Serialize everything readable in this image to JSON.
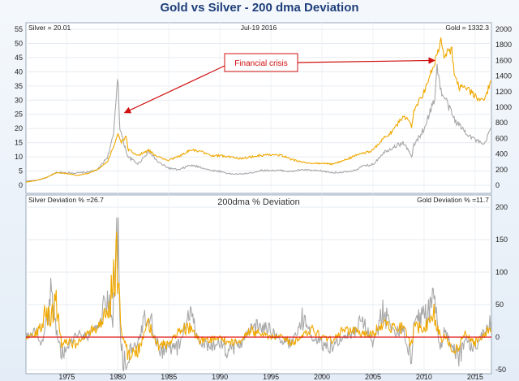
{
  "chart_data": [
    {
      "type": "line",
      "title": "Gold vs Silver - 200 dma Deviation",
      "top_left_label": "Silver = 20.01",
      "top_center_label": "Jul-19  2016",
      "top_right_label": "Gold = 1332.3",
      "left_axis": {
        "range": [
          0,
          55
        ],
        "ticks": [
          "0",
          "5",
          "10",
          "15",
          "20",
          "25",
          "30",
          "35",
          "40",
          "45",
          "50",
          "55"
        ]
      },
      "right_axis": {
        "range": [
          0,
          2000
        ],
        "ticks": [
          "0",
          "200",
          "400",
          "600",
          "800",
          "1000",
          "1200",
          "1400",
          "1600",
          "1800",
          "2000"
        ]
      },
      "x_axis": {
        "range": [
          1971,
          2016.6
        ],
        "ticks": [
          "1975",
          "1980",
          "1985",
          "1990",
          "1995",
          "2000",
          "2005",
          "2010",
          "2015"
        ]
      },
      "grid": true,
      "annotation": {
        "text": "Financial crisis",
        "arrows_to": [
          [
            1980.5,
            25
          ],
          [
            2011.2,
            44
          ]
        ]
      },
      "series": [
        {
          "name": "Silver",
          "axis": "left",
          "color": "#a8a8a8",
          "points": [
            [
              1971,
              1.5
            ],
            [
              1972,
              1.7
            ],
            [
              1973,
              2.6
            ],
            [
              1974,
              4.5
            ],
            [
              1975,
              4.4
            ],
            [
              1976,
              4.3
            ],
            [
              1977,
              4.6
            ],
            [
              1978,
              5.4
            ],
            [
              1979,
              10
            ],
            [
              1979.6,
              18
            ],
            [
              1980.0,
              40
            ],
            [
              1980.2,
              20
            ],
            [
              1980.5,
              16
            ],
            [
              1981,
              10
            ],
            [
              1982,
              7.5
            ],
            [
              1983,
              12
            ],
            [
              1983.5,
              10
            ],
            [
              1984,
              8
            ],
            [
              1985,
              6
            ],
            [
              1986,
              5.4
            ],
            [
              1987,
              7
            ],
            [
              1988,
              6.5
            ],
            [
              1989,
              5.3
            ],
            [
              1990,
              4.9
            ],
            [
              1991,
              4
            ],
            [
              1992,
              3.9
            ],
            [
              1993,
              4.3
            ],
            [
              1994,
              5.2
            ],
            [
              1995,
              5.2
            ],
            [
              1996,
              5.2
            ],
            [
              1997,
              4.8
            ],
            [
              1998,
              5.5
            ],
            [
              1999,
              5.2
            ],
            [
              2000,
              5
            ],
            [
              2001,
              4.4
            ],
            [
              2002,
              4.6
            ],
            [
              2003,
              4.9
            ],
            [
              2004,
              6.7
            ],
            [
              2005,
              7.3
            ],
            [
              2006,
              11.5
            ],
            [
              2007,
              13.5
            ],
            [
              2008,
              15
            ],
            [
              2008.8,
              10
            ],
            [
              2009,
              14
            ],
            [
              2010,
              20
            ],
            [
              2011,
              30
            ],
            [
              2011.3,
              42
            ],
            [
              2011.7,
              32
            ],
            [
              2012,
              31
            ],
            [
              2013,
              23
            ],
            [
              2014,
              19
            ],
            [
              2015,
              16
            ],
            [
              2015.9,
              14
            ],
            [
              2016.5,
              20
            ]
          ]
        },
        {
          "name": "Gold",
          "axis": "right",
          "color": "#f0a800",
          "points": [
            [
              1971,
              40
            ],
            [
              1972,
              60
            ],
            [
              1973,
              100
            ],
            [
              1974,
              160
            ],
            [
              1975,
              150
            ],
            [
              1976,
              125
            ],
            [
              1977,
              150
            ],
            [
              1978,
              200
            ],
            [
              1979,
              300
            ],
            [
              1979.6,
              500
            ],
            [
              1980.0,
              670
            ],
            [
              1980.3,
              550
            ],
            [
              1980.8,
              620
            ],
            [
              1981,
              460
            ],
            [
              1982,
              380
            ],
            [
              1983,
              450
            ],
            [
              1984,
              360
            ],
            [
              1985,
              320
            ],
            [
              1986,
              370
            ],
            [
              1987,
              450
            ],
            [
              1988,
              440
            ],
            [
              1989,
              380
            ],
            [
              1990,
              380
            ],
            [
              1991,
              360
            ],
            [
              1992,
              345
            ],
            [
              1993,
              360
            ],
            [
              1994,
              385
            ],
            [
              1995,
              385
            ],
            [
              1996,
              385
            ],
            [
              1997,
              330
            ],
            [
              1998,
              295
            ],
            [
              1999,
              280
            ],
            [
              2000,
              280
            ],
            [
              2001,
              270
            ],
            [
              2002,
              310
            ],
            [
              2003,
              365
            ],
            [
              2004,
              410
            ],
            [
              2005,
              445
            ],
            [
              2006,
              600
            ],
            [
              2007,
              700
            ],
            [
              2008,
              900
            ],
            [
              2008.8,
              750
            ],
            [
              2009,
              950
            ],
            [
              2010,
              1200
            ],
            [
              2011,
              1550
            ],
            [
              2011.7,
              1850
            ],
            [
              2012,
              1650
            ],
            [
              2012.7,
              1750
            ],
            [
              2013,
              1400
            ],
            [
              2013.5,
              1250
            ],
            [
              2014,
              1250
            ],
            [
              2015,
              1150
            ],
            [
              2015.9,
              1060
            ],
            [
              2016.5,
              1332
            ]
          ]
        }
      ]
    },
    {
      "type": "line",
      "title": "200dma % Deviation",
      "top_left_label": "Silver Deviation % =26.7",
      "top_right_label": "Gold Deviation % =11.7",
      "right_axis": {
        "range": [
          -50,
          200
        ],
        "ticks": [
          "-50",
          "0",
          "50",
          "100",
          "150",
          "200"
        ]
      },
      "x_axis": {
        "range": [
          1971,
          2016.6
        ],
        "ticks": [
          "1975",
          "1980",
          "1985",
          "1990",
          "1995",
          "2000",
          "2005",
          "2010",
          "2015"
        ]
      },
      "zero_line_color": "#e01010",
      "grid": true,
      "series": [
        {
          "name": "Silver Deviation %",
          "color": "#a8a8a8",
          "points": [
            [
              1971,
              0
            ],
            [
              1972,
              8
            ],
            [
              1972.6,
              -10
            ],
            [
              1973,
              20
            ],
            [
              1973.5,
              70
            ],
            [
              1974,
              10
            ],
            [
              1974.5,
              -30
            ],
            [
              1975,
              -15
            ],
            [
              1976,
              5
            ],
            [
              1977,
              0
            ],
            [
              1978,
              15
            ],
            [
              1979,
              60
            ],
            [
              1979.5,
              30
            ],
            [
              1980.0,
              185
            ],
            [
              1980.3,
              -20
            ],
            [
              1980.6,
              -40
            ],
            [
              1981,
              -30
            ],
            [
              1982,
              -10
            ],
            [
              1983,
              50
            ],
            [
              1983.5,
              5
            ],
            [
              1984,
              -20
            ],
            [
              1985,
              -20
            ],
            [
              1986,
              -15
            ],
            [
              1987,
              40
            ],
            [
              1988,
              -5
            ],
            [
              1989,
              -15
            ],
            [
              1990,
              -10
            ],
            [
              1991,
              -25
            ],
            [
              1992,
              -10
            ],
            [
              1993,
              10
            ],
            [
              1994,
              20
            ],
            [
              1995,
              10
            ],
            [
              1996,
              -5
            ],
            [
              1997,
              -10
            ],
            [
              1998,
              30
            ],
            [
              1999,
              0
            ],
            [
              2000,
              -10
            ],
            [
              2001,
              -15
            ],
            [
              2002,
              0
            ],
            [
              2003,
              5
            ],
            [
              2004,
              25
            ],
            [
              2005,
              -10
            ],
            [
              2006,
              40
            ],
            [
              2007,
              10
            ],
            [
              2008,
              10
            ],
            [
              2008.8,
              -45
            ],
            [
              2009,
              25
            ],
            [
              2010,
              30
            ],
            [
              2011,
              70
            ],
            [
              2011.5,
              -25
            ],
            [
              2012,
              10
            ],
            [
              2013,
              -20
            ],
            [
              2013.5,
              -30
            ],
            [
              2014,
              -5
            ],
            [
              2015,
              -15
            ],
            [
              2016.5,
              27
            ]
          ]
        },
        {
          "name": "Gold Deviation %",
          "color": "#f0a800",
          "points": [
            [
              1971,
              0
            ],
            [
              1972,
              5
            ],
            [
              1973,
              40
            ],
            [
              1973.5,
              30
            ],
            [
              1974,
              55
            ],
            [
              1974.5,
              -10
            ],
            [
              1975,
              -5
            ],
            [
              1976,
              -15
            ],
            [
              1977,
              5
            ],
            [
              1978,
              15
            ],
            [
              1979,
              40
            ],
            [
              1980.0,
              125
            ],
            [
              1980.3,
              10
            ],
            [
              1981,
              -25
            ],
            [
              1982,
              -20
            ],
            [
              1983,
              20
            ],
            [
              1984,
              -15
            ],
            [
              1985,
              -10
            ],
            [
              1986,
              10
            ],
            [
              1987,
              15
            ],
            [
              1988,
              -5
            ],
            [
              1989,
              -5
            ],
            [
              1990,
              0
            ],
            [
              1991,
              -10
            ],
            [
              1992,
              -5
            ],
            [
              1993,
              10
            ],
            [
              1994,
              5
            ],
            [
              1995,
              0
            ],
            [
              1996,
              3
            ],
            [
              1997,
              -10
            ],
            [
              1998,
              0
            ],
            [
              1999,
              15
            ],
            [
              2000,
              0
            ],
            [
              2001,
              -5
            ],
            [
              2002,
              10
            ],
            [
              2003,
              10
            ],
            [
              2004,
              5
            ],
            [
              2005,
              5
            ],
            [
              2006,
              25
            ],
            [
              2007,
              15
            ],
            [
              2008,
              15
            ],
            [
              2008.8,
              -15
            ],
            [
              2009,
              15
            ],
            [
              2010,
              15
            ],
            [
              2011,
              35
            ],
            [
              2011.8,
              -10
            ],
            [
              2012,
              5
            ],
            [
              2013,
              -25
            ],
            [
              2014,
              5
            ],
            [
              2015,
              -10
            ],
            [
              2016.5,
              12
            ]
          ]
        }
      ]
    }
  ]
}
